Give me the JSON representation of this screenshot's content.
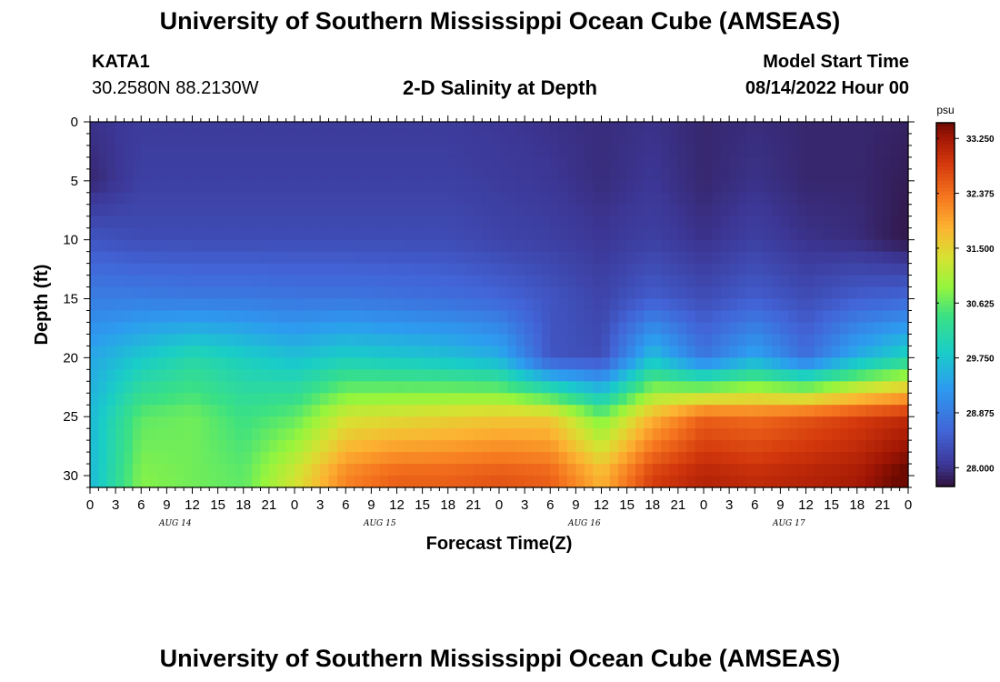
{
  "page": {
    "title": "University of Southern Mississippi Ocean Cube (AMSEAS)",
    "footer_title": "University of Southern Mississippi Ocean Cube (AMSEAS)",
    "station_id": "KATA1",
    "station_coords": "30.2580N  88.2130W",
    "plot_title": "2-D Salinity at Depth",
    "model_start_label": "Model Start Time",
    "model_start_value": "08/14/2022 Hour 00"
  },
  "chart_data": {
    "type": "heatmap",
    "title": "2-D Salinity at Depth",
    "xlabel": "Forecast Time(Z)",
    "ylabel": "Depth (ft)",
    "x_tick_labels": [
      "0",
      "3",
      "6",
      "9",
      "12",
      "15",
      "18",
      "21",
      "0",
      "3",
      "6",
      "9",
      "12",
      "15",
      "18",
      "21",
      "0",
      "3",
      "6",
      "9",
      "12",
      "15",
      "18",
      "21",
      "0",
      "3",
      "6",
      "9",
      "12",
      "15",
      "18",
      "21",
      "0"
    ],
    "x_range_hours": [
      0,
      96
    ],
    "day_labels": [
      {
        "label": "AUG 14",
        "hour": 10
      },
      {
        "label": "AUG 15",
        "hour": 34
      },
      {
        "label": "AUG 16",
        "hour": 58
      },
      {
        "label": "AUG 17",
        "hour": 82
      }
    ],
    "y_tick_labels": [
      "0",
      "5",
      "10",
      "15",
      "20",
      "25",
      "30"
    ],
    "y_ticks": [
      0,
      5,
      10,
      15,
      20,
      25,
      30
    ],
    "ylim": [
      0,
      31
    ],
    "y_inverted": true,
    "colorbar": {
      "unit": "psu",
      "labels": [
        "33.250",
        "32.375",
        "31.500",
        "30.625",
        "29.750",
        "28.875",
        "28.000"
      ],
      "values": [
        33.25,
        32.375,
        31.5,
        30.625,
        29.75,
        28.875,
        28.0
      ],
      "range": [
        27.7,
        33.5
      ]
    },
    "time_hours": [
      0,
      6,
      12,
      18,
      24,
      30,
      36,
      42,
      48,
      54,
      60,
      66,
      72,
      78,
      84,
      90,
      96
    ],
    "depth_ft": [
      0,
      5,
      10,
      15,
      20,
      25,
      30
    ],
    "salinity_psu": [
      [
        28.0,
        28.1,
        28.1,
        28.1,
        28.1,
        28.1,
        28.1,
        28.1,
        28.05,
        28.0,
        27.95,
        28.0,
        27.9,
        27.95,
        27.9,
        27.9,
        27.85
      ],
      [
        27.9,
        28.15,
        28.15,
        28.15,
        28.15,
        28.15,
        28.15,
        28.15,
        28.1,
        28.05,
        27.95,
        28.05,
        27.9,
        28.0,
        27.9,
        27.9,
        27.8
      ],
      [
        28.4,
        28.3,
        28.3,
        28.3,
        28.3,
        28.3,
        28.3,
        28.3,
        28.2,
        28.15,
        28.05,
        28.15,
        28.0,
        28.15,
        28.0,
        27.95,
        27.75
      ],
      [
        28.9,
        28.9,
        28.85,
        28.85,
        28.8,
        28.8,
        28.75,
        28.7,
        28.6,
        28.4,
        28.2,
        28.5,
        28.3,
        28.5,
        28.3,
        28.5,
        28.6
      ],
      [
        29.4,
        29.8,
        30.1,
        29.9,
        29.7,
        29.9,
        29.8,
        29.7,
        29.5,
        28.4,
        28.3,
        29.7,
        28.8,
        29.4,
        28.7,
        29.5,
        30.0
      ],
      [
        29.6,
        30.6,
        30.7,
        30.4,
        30.6,
        31.3,
        31.4,
        31.5,
        31.6,
        31.6,
        30.7,
        31.8,
        32.5,
        32.4,
        32.6,
        32.8,
        33.0
      ],
      [
        29.6,
        30.8,
        30.7,
        30.6,
        31.3,
        32.2,
        32.5,
        32.5,
        32.6,
        32.5,
        31.8,
        32.8,
        33.1,
        33.0,
        33.1,
        33.2,
        33.6
      ]
    ]
  }
}
